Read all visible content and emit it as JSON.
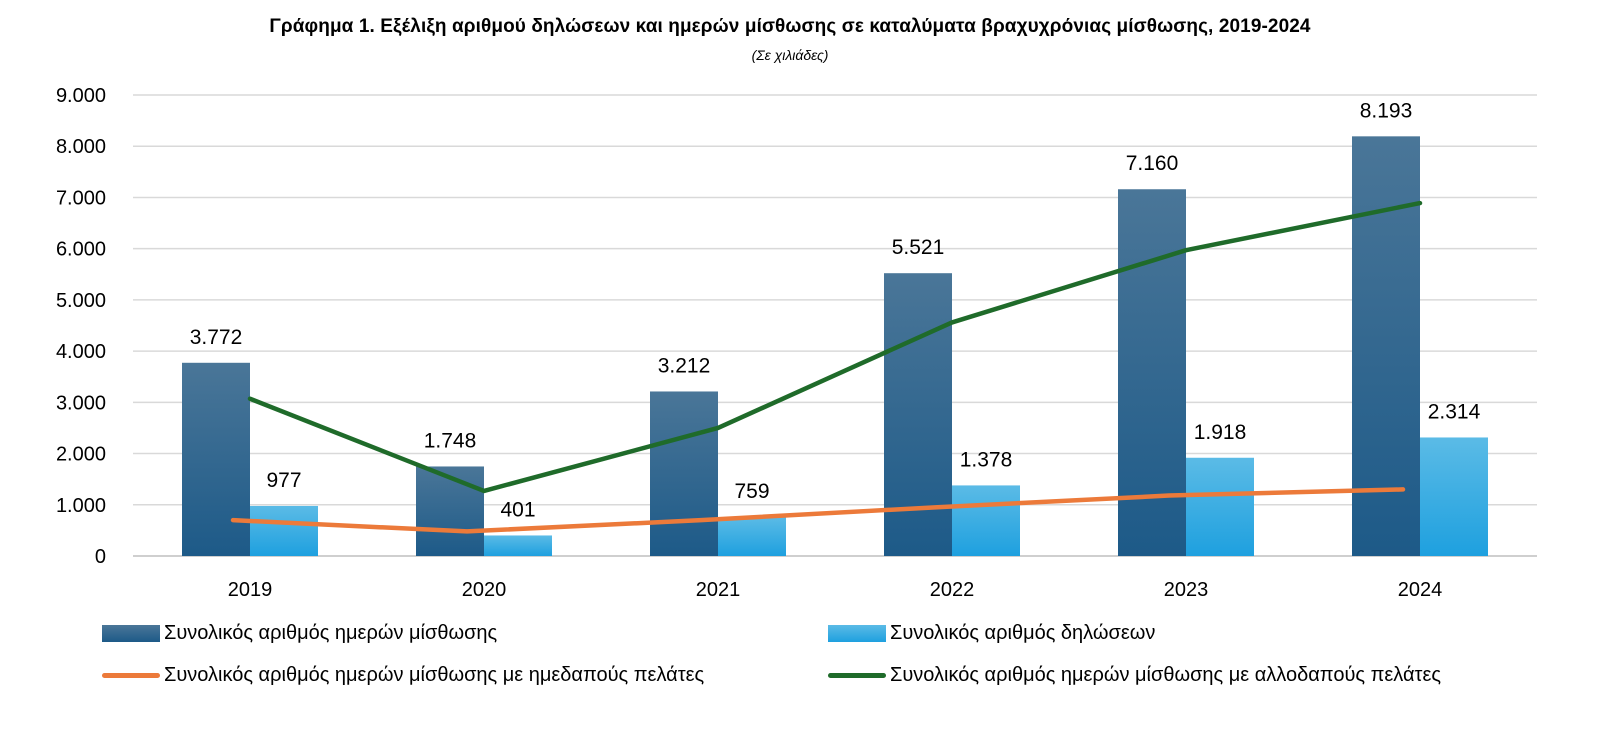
{
  "chart_data": {
    "type": "bar",
    "title": "Γράφημα 1. Εξέλιξη αριθμού δηλώσεων και ημερών μίσθωσης σε καταλύματα βραχυχρόνιας μίσθωσης, 2019-2024",
    "subtitle": "(Σε χιλιάδες)",
    "xlabel": "",
    "ylabel": "",
    "ylim": [
      0,
      9000
    ],
    "yticks": [
      0,
      1000,
      2000,
      3000,
      4000,
      5000,
      6000,
      7000,
      8000,
      9000
    ],
    "ytick_labels": [
      "0",
      "1.000",
      "2.000",
      "3.000",
      "4.000",
      "5.000",
      "6.000",
      "7.000",
      "8.000",
      "9.000"
    ],
    "grid": true,
    "legend_position": "bottom",
    "categories": [
      "2019",
      "2020",
      "2021",
      "2022",
      "2023",
      "2024"
    ],
    "series": [
      {
        "name": "Συνολικός αριθμός ημερών μίσθωσης",
        "kind": "bar",
        "color": "#2a5d84",
        "values": [
          3772,
          1748,
          3212,
          5521,
          7160,
          8193
        ],
        "labels": [
          "3.772",
          "1.748",
          "3.212",
          "5.521",
          "7.160",
          "8.193"
        ]
      },
      {
        "name": "Συνολικός αριθμός δηλώσεων",
        "kind": "bar",
        "color": "#2fa8e0",
        "values": [
          977,
          401,
          759,
          1378,
          1918,
          2314
        ],
        "labels": [
          "977",
          "401",
          "759",
          "1.378",
          "1.918",
          "2.314"
        ]
      },
      {
        "name": "Συνολικός αριθμός ημερών μίσθωσης με ημεδαπούς πελάτες",
        "kind": "line",
        "color": "#ec7a3a",
        "values": [
          700,
          480,
          700,
          950,
          1180,
          1300
        ]
      },
      {
        "name": "Συνολικός αριθμός ημερών μίσθωσης με αλλοδαπούς πελάτες",
        "kind": "line",
        "color": "#1f6b2a",
        "values": [
          3070,
          1270,
          2500,
          4560,
          5970,
          6890
        ]
      }
    ]
  }
}
